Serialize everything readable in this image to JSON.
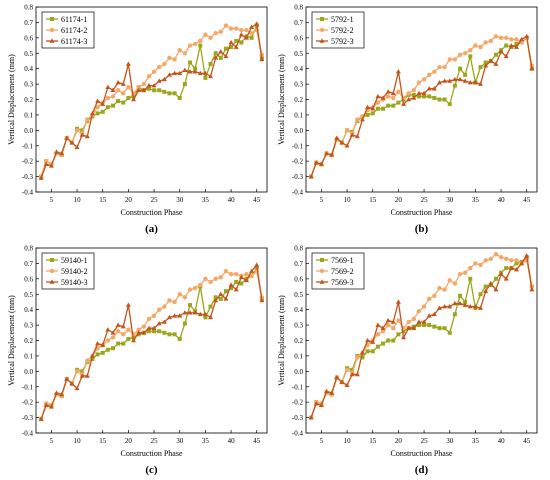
{
  "colors": {
    "series1": "#9aa61b",
    "series2": "#f4a868",
    "series3": "#c4541a"
  },
  "chart_data": [
    {
      "type": "line",
      "caption": "(a)",
      "xlabel": "Construction Phase",
      "ylabel": "Vertical Displacement (mm)",
      "xlim": [
        2,
        47
      ],
      "ylim": [
        -0.4,
        0.8
      ],
      "xticks": [
        5,
        10,
        15,
        20,
        25,
        30,
        35,
        40,
        45
      ],
      "yticks": [
        -0.4,
        -0.3,
        -0.2,
        -0.1,
        0.0,
        0.1,
        0.2,
        0.3,
        0.4,
        0.5,
        0.6,
        0.7,
        0.8
      ],
      "ytick_labels": [
        "-0.4",
        "-0.3",
        "-0.2",
        "-0.1",
        "0.0",
        "0.1",
        "0.2",
        "0.3",
        "0.4",
        "0.5",
        "0.6",
        "0.7",
        "0.8"
      ],
      "legend": "top-left",
      "x": [
        3,
        4,
        5,
        6,
        7,
        8,
        9,
        10,
        11,
        12,
        13,
        14,
        15,
        16,
        17,
        18,
        19,
        20,
        21,
        22,
        23,
        24,
        25,
        26,
        27,
        28,
        29,
        30,
        31,
        32,
        33,
        34,
        35,
        36,
        37,
        38,
        39,
        40,
        41,
        42,
        43,
        44,
        45,
        46
      ],
      "series": [
        {
          "name": "61174-1",
          "values": [
            -0.3,
            -0.2,
            -0.22,
            -0.15,
            -0.16,
            -0.05,
            -0.08,
            0.01,
            0.0,
            0.06,
            0.09,
            0.11,
            0.12,
            0.15,
            0.16,
            0.19,
            0.18,
            0.21,
            0.22,
            0.28,
            0.26,
            0.27,
            0.26,
            0.26,
            0.25,
            0.24,
            0.24,
            0.21,
            0.3,
            0.44,
            0.4,
            0.55,
            0.34,
            0.43,
            0.5,
            0.47,
            0.53,
            0.54,
            0.58,
            0.57,
            0.61,
            0.6,
            0.68,
            0.47
          ]
        },
        {
          "name": "61174-2",
          "values": [
            -0.3,
            -0.2,
            -0.22,
            -0.15,
            -0.16,
            -0.05,
            -0.08,
            0.0,
            -0.02,
            0.07,
            0.1,
            0.15,
            0.18,
            0.21,
            0.22,
            0.26,
            0.24,
            0.28,
            0.24,
            0.28,
            0.3,
            0.35,
            0.38,
            0.41,
            0.43,
            0.47,
            0.46,
            0.52,
            0.5,
            0.55,
            0.56,
            0.58,
            0.62,
            0.6,
            0.63,
            0.64,
            0.68,
            0.66,
            0.66,
            0.65,
            0.65,
            0.63,
            0.65,
            0.49
          ]
        },
        {
          "name": "61174-3",
          "values": [
            -0.31,
            -0.22,
            -0.23,
            -0.14,
            -0.15,
            -0.05,
            -0.08,
            -0.11,
            -0.03,
            -0.04,
            0.11,
            0.19,
            0.17,
            0.28,
            0.26,
            0.31,
            0.3,
            0.43,
            0.2,
            0.26,
            0.26,
            0.29,
            0.29,
            0.32,
            0.33,
            0.36,
            0.37,
            0.37,
            0.39,
            0.38,
            0.38,
            0.37,
            0.37,
            0.35,
            0.47,
            0.51,
            0.48,
            0.57,
            0.54,
            0.62,
            0.6,
            0.67,
            0.69,
            0.46
          ]
        }
      ]
    },
    {
      "type": "line",
      "caption": "(b)",
      "xlabel": "Construction Phase",
      "ylabel": "Vertical Displacement (mm)",
      "xlim": [
        2,
        47
      ],
      "ylim": [
        -0.4,
        0.8
      ],
      "xticks": [
        5,
        10,
        15,
        20,
        25,
        30,
        35,
        40,
        45
      ],
      "yticks": [
        -0.4,
        -0.3,
        -0.2,
        -0.1,
        0.0,
        0.1,
        0.2,
        0.3,
        0.4,
        0.5,
        0.6,
        0.7,
        0.8
      ],
      "ytick_labels": [
        "-0.4",
        "-0.3",
        "-0.2",
        "-0.1",
        "0.0",
        "0.1",
        "0.2",
        "0.3",
        "0.4",
        "0.5",
        "0.6",
        "0.7",
        "0.8"
      ],
      "legend": "top-left",
      "x": [
        3,
        4,
        5,
        6,
        7,
        8,
        9,
        10,
        11,
        12,
        13,
        14,
        15,
        16,
        17,
        18,
        19,
        20,
        21,
        22,
        23,
        24,
        25,
        26,
        27,
        28,
        29,
        30,
        31,
        32,
        33,
        34,
        35,
        36,
        37,
        38,
        39,
        40,
        41,
        42,
        43,
        44,
        45,
        46
      ],
      "series": [
        {
          "name": "5792-1",
          "values": [
            -0.3,
            -0.21,
            -0.22,
            -0.15,
            -0.16,
            -0.06,
            -0.08,
            0.0,
            -0.01,
            0.06,
            0.09,
            0.1,
            0.11,
            0.14,
            0.14,
            0.16,
            0.16,
            0.18,
            0.2,
            0.23,
            0.23,
            0.22,
            0.22,
            0.22,
            0.21,
            0.2,
            0.2,
            0.17,
            0.29,
            0.4,
            0.36,
            0.48,
            0.31,
            0.41,
            0.44,
            0.45,
            0.49,
            0.52,
            0.55,
            0.54,
            0.56,
            0.57,
            0.6,
            0.4
          ]
        },
        {
          "name": "5792-2",
          "values": [
            -0.3,
            -0.21,
            -0.22,
            -0.15,
            -0.16,
            -0.06,
            -0.08,
            0.0,
            -0.02,
            0.07,
            0.09,
            0.13,
            0.15,
            0.18,
            0.2,
            0.22,
            0.21,
            0.25,
            0.21,
            0.24,
            0.26,
            0.31,
            0.33,
            0.36,
            0.38,
            0.41,
            0.41,
            0.46,
            0.46,
            0.49,
            0.5,
            0.52,
            0.55,
            0.54,
            0.57,
            0.58,
            0.61,
            0.6,
            0.6,
            0.59,
            0.59,
            0.57,
            0.6,
            0.42
          ]
        },
        {
          "name": "5792-3",
          "values": [
            -0.3,
            -0.21,
            -0.22,
            -0.15,
            -0.16,
            -0.05,
            -0.08,
            -0.1,
            -0.03,
            -0.04,
            0.07,
            0.15,
            0.14,
            0.22,
            0.21,
            0.25,
            0.24,
            0.38,
            0.17,
            0.2,
            0.21,
            0.24,
            0.24,
            0.27,
            0.27,
            0.31,
            0.32,
            0.32,
            0.33,
            0.33,
            0.32,
            0.31,
            0.31,
            0.3,
            0.42,
            0.45,
            0.43,
            0.51,
            0.48,
            0.55,
            0.54,
            0.59,
            0.61,
            0.4
          ]
        }
      ]
    },
    {
      "type": "line",
      "caption": "(c)",
      "xlabel": "Construction Phase",
      "ylabel": "Vertical Displacement (mm)",
      "xlim": [
        2,
        47
      ],
      "ylim": [
        -0.4,
        0.8
      ],
      "xticks": [
        5,
        10,
        15,
        20,
        25,
        30,
        35,
        40,
        45
      ],
      "yticks": [
        -0.4,
        -0.3,
        -0.2,
        -0.1,
        0.0,
        0.1,
        0.2,
        0.3,
        0.4,
        0.5,
        0.6,
        0.7,
        0.8
      ],
      "ytick_labels": [
        "-0.4",
        "-0.3",
        "-0.2",
        "-0.1",
        "0.0",
        "0.1",
        "0.2",
        "0.3",
        "0.4",
        "0.5",
        "0.6",
        "0.7",
        "0.8"
      ],
      "legend": "top-left",
      "x": [
        3,
        4,
        5,
        6,
        7,
        8,
        9,
        10,
        11,
        12,
        13,
        14,
        15,
        16,
        17,
        18,
        19,
        20,
        21,
        22,
        23,
        24,
        25,
        26,
        27,
        28,
        29,
        30,
        31,
        32,
        33,
        34,
        35,
        36,
        37,
        38,
        39,
        40,
        41,
        42,
        43,
        44,
        45,
        46
      ],
      "series": [
        {
          "name": "59140-1",
          "values": [
            -0.31,
            -0.21,
            -0.22,
            -0.15,
            -0.16,
            -0.05,
            -0.08,
            0.01,
            0.0,
            0.06,
            0.08,
            0.11,
            0.12,
            0.14,
            0.15,
            0.18,
            0.18,
            0.21,
            0.22,
            0.24,
            0.25,
            0.26,
            0.26,
            0.26,
            0.25,
            0.24,
            0.24,
            0.21,
            0.31,
            0.43,
            0.39,
            0.55,
            0.35,
            0.42,
            0.48,
            0.47,
            0.52,
            0.54,
            0.58,
            0.57,
            0.6,
            0.62,
            0.67,
            0.47
          ]
        },
        {
          "name": "59140-2",
          "values": [
            -0.31,
            -0.21,
            -0.22,
            -0.15,
            -0.16,
            -0.05,
            -0.08,
            0.0,
            -0.02,
            0.07,
            0.1,
            0.15,
            0.17,
            0.2,
            0.22,
            0.26,
            0.24,
            0.27,
            0.24,
            0.27,
            0.29,
            0.34,
            0.36,
            0.4,
            0.42,
            0.46,
            0.45,
            0.5,
            0.48,
            0.53,
            0.54,
            0.56,
            0.6,
            0.58,
            0.6,
            0.61,
            0.65,
            0.63,
            0.63,
            0.62,
            0.63,
            0.62,
            0.65,
            0.48
          ]
        },
        {
          "name": "59140-3",
          "values": [
            -0.31,
            -0.22,
            -0.23,
            -0.14,
            -0.15,
            -0.05,
            -0.08,
            -0.11,
            -0.03,
            -0.03,
            0.1,
            0.18,
            0.17,
            0.27,
            0.25,
            0.3,
            0.29,
            0.43,
            0.2,
            0.25,
            0.25,
            0.28,
            0.28,
            0.31,
            0.32,
            0.35,
            0.36,
            0.36,
            0.38,
            0.38,
            0.38,
            0.37,
            0.37,
            0.35,
            0.46,
            0.5,
            0.47,
            0.56,
            0.53,
            0.61,
            0.59,
            0.65,
            0.69,
            0.46
          ]
        }
      ]
    },
    {
      "type": "line",
      "caption": "(d)",
      "xlabel": "Construction Phase",
      "ylabel": "Vertical Displacement (mm)",
      "xlim": [
        2,
        47
      ],
      "ylim": [
        -0.4,
        0.8
      ],
      "xticks": [
        5,
        10,
        15,
        20,
        25,
        30,
        35,
        40,
        45
      ],
      "yticks": [
        -0.4,
        -0.3,
        -0.2,
        -0.1,
        0.0,
        0.1,
        0.2,
        0.3,
        0.4,
        0.5,
        0.6,
        0.7,
        0.8
      ],
      "ytick_labels": [
        "-0.4",
        "-0.3",
        "-0.2",
        "-0.1",
        "0.0",
        "0.1",
        "0.2",
        "0.3",
        "0.4",
        "0.5",
        "0.6",
        "0.7",
        "0.8"
      ],
      "legend": "top-left",
      "x": [
        3,
        4,
        5,
        6,
        7,
        8,
        9,
        10,
        11,
        12,
        13,
        14,
        15,
        16,
        17,
        18,
        19,
        20,
        21,
        22,
        23,
        24,
        25,
        26,
        27,
        28,
        29,
        30,
        31,
        32,
        33,
        34,
        35,
        36,
        37,
        38,
        39,
        40,
        41,
        42,
        43,
        44,
        45,
        46
      ],
      "series": [
        {
          "name": "7569-1",
          "values": [
            -0.3,
            -0.2,
            -0.21,
            -0.14,
            -0.15,
            -0.04,
            -0.07,
            0.02,
            0.01,
            0.1,
            0.09,
            0.13,
            0.13,
            0.16,
            0.18,
            0.2,
            0.2,
            0.24,
            0.26,
            0.28,
            0.29,
            0.3,
            0.3,
            0.3,
            0.29,
            0.28,
            0.28,
            0.25,
            0.37,
            0.49,
            0.45,
            0.6,
            0.41,
            0.5,
            0.55,
            0.56,
            0.6,
            0.64,
            0.67,
            0.67,
            0.7,
            0.71,
            0.74,
            0.55
          ]
        },
        {
          "name": "7569-2",
          "values": [
            -0.3,
            -0.2,
            -0.21,
            -0.14,
            -0.15,
            -0.04,
            -0.07,
            0.01,
            -0.01,
            0.09,
            0.12,
            0.17,
            0.2,
            0.24,
            0.26,
            0.3,
            0.28,
            0.33,
            0.28,
            0.32,
            0.34,
            0.39,
            0.42,
            0.47,
            0.49,
            0.54,
            0.53,
            0.59,
            0.57,
            0.63,
            0.64,
            0.67,
            0.7,
            0.69,
            0.72,
            0.73,
            0.76,
            0.74,
            0.73,
            0.72,
            0.72,
            0.7,
            0.72,
            0.55
          ]
        },
        {
          "name": "7569-3",
          "values": [
            -0.3,
            -0.21,
            -0.22,
            -0.13,
            -0.14,
            -0.04,
            -0.07,
            -0.09,
            -0.02,
            -0.02,
            0.12,
            0.2,
            0.19,
            0.3,
            0.28,
            0.33,
            0.32,
            0.45,
            0.22,
            0.28,
            0.28,
            0.32,
            0.32,
            0.36,
            0.37,
            0.41,
            0.42,
            0.42,
            0.44,
            0.44,
            0.43,
            0.42,
            0.42,
            0.41,
            0.52,
            0.57,
            0.53,
            0.63,
            0.6,
            0.67,
            0.66,
            0.7,
            0.75,
            0.53
          ]
        }
      ]
    }
  ]
}
